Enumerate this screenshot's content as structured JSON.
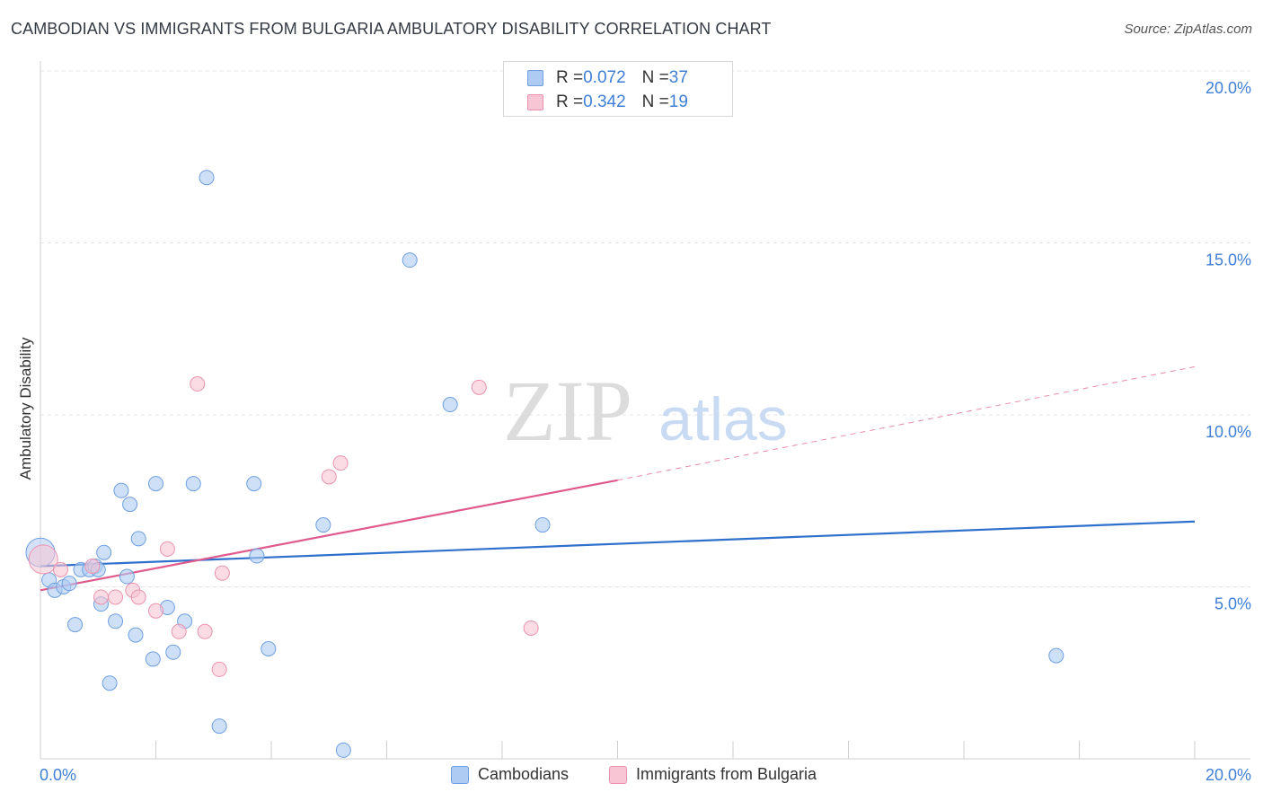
{
  "title": "CAMBODIAN VS IMMIGRANTS FROM BULGARIA AMBULATORY DISABILITY CORRELATION CHART",
  "source": "Source: ZipAtlas.com",
  "watermark": {
    "part1": "ZIP",
    "part2": "atlas"
  },
  "legend_top": [
    {
      "r_label": "R = ",
      "r_value": "0.072",
      "n_label": "N = ",
      "n_value": "37",
      "color": "#aecbf3",
      "border": "#6f9fe0"
    },
    {
      "r_label": "R = ",
      "r_value": "0.342",
      "n_label": "N = ",
      "n_value": "19",
      "color": "#f8c5d4",
      "border": "#e893ad"
    }
  ],
  "legend_bottom": [
    {
      "label": "Cambodians",
      "color": "#aecbf3",
      "border": "#6f9fe0"
    },
    {
      "label": "Immigrants from Bulgaria",
      "color": "#f8c5d4",
      "border": "#e893ad"
    }
  ],
  "chart_data": {
    "type": "scatter",
    "title": "CAMBODIAN VS IMMIGRANTS FROM BULGARIA AMBULATORY DISABILITY CORRELATION CHART",
    "xlabel": "",
    "ylabel": "Ambulatory Disability",
    "xlim": [
      0,
      20
    ],
    "ylim": [
      0,
      20
    ],
    "x_tick_labels": [
      "0.0%",
      "20.0%"
    ],
    "y_ticks": [
      5,
      10,
      15,
      20
    ],
    "y_tick_labels": [
      "5.0%",
      "10.0%",
      "15.0%",
      "20.0%"
    ],
    "series": [
      {
        "name": "Cambodians",
        "color": "#aecbf3",
        "stroke": "#6f9fe0",
        "line_color": "#2f70cc",
        "trend": {
          "x": [
            0,
            20
          ],
          "y": [
            5.6,
            6.9
          ]
        },
        "points": [
          {
            "x": 0.0,
            "y": 6.0,
            "big": true
          },
          {
            "x": 0.15,
            "y": 5.2
          },
          {
            "x": 0.25,
            "y": 4.9
          },
          {
            "x": 0.4,
            "y": 5.0
          },
          {
            "x": 0.5,
            "y": 5.1
          },
          {
            "x": 0.6,
            "y": 3.9
          },
          {
            "x": 0.7,
            "y": 5.5
          },
          {
            "x": 0.85,
            "y": 5.5
          },
          {
            "x": 0.95,
            "y": 5.6
          },
          {
            "x": 1.0,
            "y": 5.5
          },
          {
            "x": 1.05,
            "y": 4.5
          },
          {
            "x": 1.1,
            "y": 6.0
          },
          {
            "x": 1.2,
            "y": 2.2
          },
          {
            "x": 1.3,
            "y": 4.0
          },
          {
            "x": 1.4,
            "y": 7.8
          },
          {
            "x": 1.5,
            "y": 5.3
          },
          {
            "x": 1.55,
            "y": 7.4
          },
          {
            "x": 1.65,
            "y": 3.6
          },
          {
            "x": 1.7,
            "y": 6.4
          },
          {
            "x": 1.95,
            "y": 2.9
          },
          {
            "x": 2.0,
            "y": 8.0
          },
          {
            "x": 2.2,
            "y": 4.4
          },
          {
            "x": 2.3,
            "y": 3.1
          },
          {
            "x": 2.5,
            "y": 4.0
          },
          {
            "x": 2.65,
            "y": 8.0
          },
          {
            "x": 2.88,
            "y": 16.9
          },
          {
            "x": 3.1,
            "y": 0.95
          },
          {
            "x": 3.7,
            "y": 8.0
          },
          {
            "x": 3.75,
            "y": 5.9
          },
          {
            "x": 3.95,
            "y": 3.2
          },
          {
            "x": 4.9,
            "y": 6.8
          },
          {
            "x": 5.25,
            "y": 0.25
          },
          {
            "x": 6.4,
            "y": 14.5
          },
          {
            "x": 7.1,
            "y": 10.3
          },
          {
            "x": 8.7,
            "y": 6.8
          },
          {
            "x": 17.6,
            "y": 3.0
          }
        ]
      },
      {
        "name": "Immigrants from Bulgaria",
        "color": "#f8c5d4",
        "stroke": "#e893ad",
        "line_color": "#e05a8e",
        "trend": {
          "x": [
            0,
            10
          ],
          "y": [
            4.9,
            8.1
          ]
        },
        "trend_dashed": {
          "x": [
            10,
            20
          ],
          "y": [
            8.1,
            11.4
          ]
        },
        "points": [
          {
            "x": 0.05,
            "y": 5.8,
            "big": true
          },
          {
            "x": 0.35,
            "y": 5.5
          },
          {
            "x": 0.9,
            "y": 5.6
          },
          {
            "x": 1.05,
            "y": 4.7
          },
          {
            "x": 1.3,
            "y": 4.7
          },
          {
            "x": 1.6,
            "y": 4.9
          },
          {
            "x": 1.7,
            "y": 4.7
          },
          {
            "x": 2.0,
            "y": 4.3
          },
          {
            "x": 2.2,
            "y": 6.1
          },
          {
            "x": 2.4,
            "y": 3.7
          },
          {
            "x": 2.72,
            "y": 10.9
          },
          {
            "x": 2.85,
            "y": 3.7
          },
          {
            "x": 3.1,
            "y": 2.6
          },
          {
            "x": 3.15,
            "y": 5.4
          },
          {
            "x": 5.0,
            "y": 8.2
          },
          {
            "x": 5.2,
            "y": 8.6
          },
          {
            "x": 7.6,
            "y": 10.8
          },
          {
            "x": 8.5,
            "y": 3.8
          }
        ]
      }
    ]
  }
}
